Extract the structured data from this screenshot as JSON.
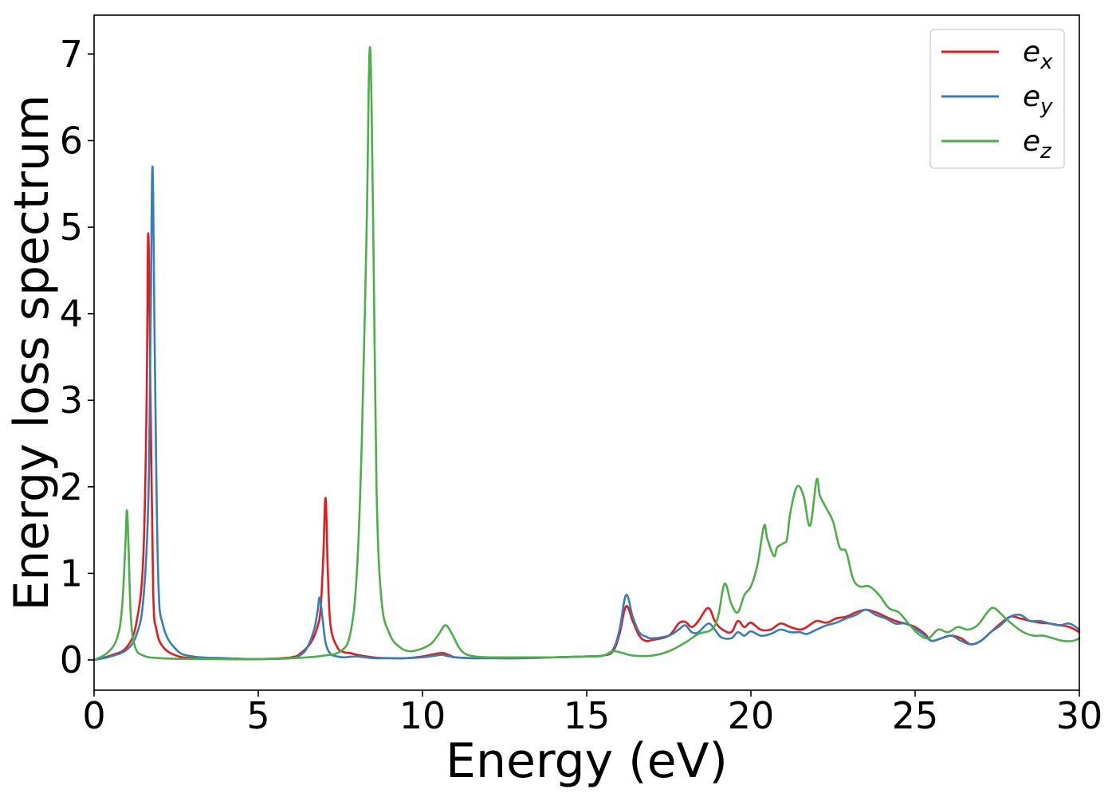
{
  "chart_data": {
    "type": "line",
    "title": "",
    "xlabel": "Energy (eV)",
    "ylabel": "Energy loss spectrum",
    "xlim": [
      0,
      30
    ],
    "ylim": [
      -0.35,
      7.45
    ],
    "xticks": [
      0,
      5,
      10,
      15,
      20,
      25,
      30
    ],
    "yticks": [
      0,
      1,
      2,
      3,
      4,
      5,
      6,
      7
    ],
    "grid": false,
    "legend_position": "top-right",
    "series": [
      {
        "name": "e_x",
        "legend_main": "e",
        "legend_sub": "x",
        "color": "#e41a1c",
        "x": [
          0,
          0.5,
          1.0,
          1.3,
          1.5,
          1.6,
          1.65,
          1.72,
          1.8,
          1.9,
          2.1,
          2.5,
          3,
          4,
          5,
          6,
          6.3,
          6.6,
          6.8,
          6.9,
          6.98,
          7.05,
          7.12,
          7.2,
          7.4,
          7.6,
          7.8,
          8.0,
          8.5,
          9,
          9.5,
          10,
          10.4,
          10.6,
          10.7,
          10.85,
          11,
          11.5,
          12,
          13,
          14,
          15,
          15.5,
          15.8,
          16.0,
          16.2,
          16.4,
          16.6,
          16.8,
          17.0,
          17.5,
          17.8,
          18.0,
          18.2,
          18.4,
          18.7,
          18.9,
          19.1,
          19.4,
          19.6,
          19.8,
          20.0,
          20.3,
          20.6,
          20.9,
          21.2,
          21.5,
          21.7,
          22.0,
          22.3,
          22.6,
          22.9,
          23.2,
          23.5,
          23.8,
          24.1,
          24.4,
          24.7,
          25.0,
          25.3,
          25.5,
          25.8,
          26.1,
          26.4,
          26.7,
          27.0,
          27.3,
          27.6,
          27.9,
          28.2,
          28.5,
          28.8,
          29.1,
          29.4,
          29.7,
          30.0
        ],
        "y": [
          0,
          0.05,
          0.15,
          0.45,
          1.2,
          3.0,
          4.93,
          3.0,
          0.8,
          0.35,
          0.15,
          0.05,
          0.02,
          0.01,
          0.01,
          0.03,
          0.08,
          0.2,
          0.38,
          0.6,
          1.2,
          1.87,
          1.0,
          0.4,
          0.15,
          0.09,
          0.08,
          0.06,
          0.03,
          0.02,
          0.02,
          0.04,
          0.07,
          0.08,
          0.07,
          0.05,
          0.03,
          0.02,
          0.02,
          0.02,
          0.03,
          0.04,
          0.05,
          0.1,
          0.3,
          0.62,
          0.45,
          0.28,
          0.22,
          0.23,
          0.28,
          0.42,
          0.44,
          0.38,
          0.45,
          0.6,
          0.45,
          0.36,
          0.32,
          0.45,
          0.38,
          0.43,
          0.35,
          0.35,
          0.42,
          0.38,
          0.35,
          0.38,
          0.45,
          0.43,
          0.48,
          0.5,
          0.55,
          0.58,
          0.55,
          0.5,
          0.45,
          0.42,
          0.38,
          0.3,
          0.22,
          0.25,
          0.28,
          0.25,
          0.18,
          0.22,
          0.32,
          0.42,
          0.5,
          0.48,
          0.45,
          0.43,
          0.42,
          0.4,
          0.38,
          0.32
        ]
      },
      {
        "name": "e_y",
        "legend_main": "e",
        "legend_sub": "y",
        "color": "#377eb8",
        "x": [
          0,
          0.5,
          1.0,
          1.3,
          1.5,
          1.65,
          1.72,
          1.78,
          1.85,
          1.95,
          2.1,
          2.5,
          3,
          4,
          5,
          6,
          6.3,
          6.5,
          6.7,
          6.8,
          6.87,
          6.95,
          7.05,
          7.2,
          7.4,
          7.6,
          8.0,
          8.5,
          9,
          9.5,
          10,
          10.4,
          10.6,
          10.7,
          10.85,
          11,
          11.5,
          12,
          13,
          14,
          15,
          15.5,
          15.8,
          16.0,
          16.2,
          16.4,
          16.6,
          16.8,
          17.0,
          17.5,
          17.8,
          18.0,
          18.2,
          18.4,
          18.7,
          18.9,
          19.1,
          19.4,
          19.6,
          19.8,
          20.0,
          20.3,
          20.6,
          20.9,
          21.2,
          21.5,
          21.7,
          22.0,
          22.3,
          22.6,
          22.9,
          23.2,
          23.5,
          23.8,
          24.1,
          24.4,
          24.7,
          25.0,
          25.3,
          25.5,
          25.8,
          26.1,
          26.4,
          26.7,
          27.0,
          27.3,
          27.6,
          27.9,
          28.2,
          28.5,
          28.8,
          29.1,
          29.4,
          29.7,
          30.0
        ],
        "y": [
          0,
          0.04,
          0.12,
          0.3,
          0.7,
          1.8,
          3.8,
          5.7,
          3.5,
          1.0,
          0.4,
          0.12,
          0.04,
          0.02,
          0.01,
          0.02,
          0.06,
          0.15,
          0.35,
          0.55,
          0.72,
          0.5,
          0.2,
          0.07,
          0.04,
          0.03,
          0.04,
          0.02,
          0.02,
          0.02,
          0.03,
          0.05,
          0.06,
          0.05,
          0.04,
          0.03,
          0.02,
          0.02,
          0.02,
          0.03,
          0.04,
          0.05,
          0.12,
          0.35,
          0.75,
          0.5,
          0.32,
          0.27,
          0.25,
          0.28,
          0.35,
          0.4,
          0.32,
          0.32,
          0.42,
          0.35,
          0.26,
          0.25,
          0.32,
          0.28,
          0.33,
          0.28,
          0.3,
          0.35,
          0.32,
          0.32,
          0.3,
          0.35,
          0.4,
          0.43,
          0.48,
          0.52,
          0.58,
          0.52,
          0.48,
          0.42,
          0.42,
          0.36,
          0.28,
          0.22,
          0.25,
          0.28,
          0.22,
          0.18,
          0.22,
          0.32,
          0.4,
          0.5,
          0.52,
          0.45,
          0.45,
          0.42,
          0.4,
          0.42,
          0.35
        ]
      },
      {
        "name": "e_z",
        "legend_main": "e",
        "legend_sub": "z",
        "color": "#4daf4a",
        "x": [
          0,
          0.4,
          0.7,
          0.85,
          0.95,
          1.0,
          1.05,
          1.12,
          1.25,
          1.5,
          2,
          3,
          4,
          5,
          6,
          6.5,
          7,
          7.5,
          7.8,
          8.0,
          8.15,
          8.3,
          8.4,
          8.5,
          8.6,
          8.75,
          9.0,
          9.3,
          9.6,
          9.9,
          10.1,
          10.3,
          10.5,
          10.7,
          10.9,
          11.1,
          11.3,
          11.6,
          12,
          12.5,
          13,
          14,
          15,
          15.5,
          15.8,
          16.1,
          16.4,
          17,
          17.5,
          18,
          18.4,
          18.8,
          19.0,
          19.2,
          19.4,
          19.6,
          19.8,
          20.0,
          20.2,
          20.4,
          20.5,
          20.7,
          20.8,
          21.0,
          21.1,
          21.2,
          21.4,
          21.6,
          21.8,
          22.0,
          22.1,
          22.3,
          22.5,
          22.7,
          22.9,
          23.1,
          23.3,
          23.6,
          23.9,
          24.2,
          24.5,
          24.8,
          25.1,
          25.4,
          25.7,
          26.0,
          26.3,
          26.6,
          26.9,
          27.2,
          27.4,
          27.7,
          28.0,
          28.3,
          28.6,
          28.9,
          29.2,
          29.5,
          29.8,
          30.0
        ],
        "y": [
          0,
          0.08,
          0.25,
          0.6,
          1.3,
          1.73,
          1.3,
          0.5,
          0.15,
          0.05,
          0.02,
          0.01,
          0.01,
          0.01,
          0.02,
          0.03,
          0.05,
          0.1,
          0.3,
          1.0,
          2.5,
          5.0,
          7.08,
          5.0,
          2.0,
          0.7,
          0.3,
          0.15,
          0.1,
          0.12,
          0.15,
          0.2,
          0.3,
          0.4,
          0.3,
          0.15,
          0.07,
          0.04,
          0.03,
          0.03,
          0.03,
          0.03,
          0.04,
          0.05,
          0.1,
          0.08,
          0.05,
          0.05,
          0.1,
          0.2,
          0.3,
          0.35,
          0.5,
          0.88,
          0.65,
          0.55,
          0.75,
          0.85,
          1.1,
          1.55,
          1.4,
          1.2,
          1.3,
          1.35,
          1.4,
          1.7,
          2.0,
          1.9,
          1.55,
          2.08,
          1.9,
          1.75,
          1.6,
          1.3,
          1.25,
          0.95,
          0.85,
          0.85,
          0.75,
          0.6,
          0.55,
          0.42,
          0.3,
          0.25,
          0.35,
          0.32,
          0.38,
          0.35,
          0.4,
          0.55,
          0.6,
          0.5,
          0.4,
          0.32,
          0.28,
          0.28,
          0.25,
          0.22,
          0.22,
          0.25
        ]
      }
    ]
  }
}
